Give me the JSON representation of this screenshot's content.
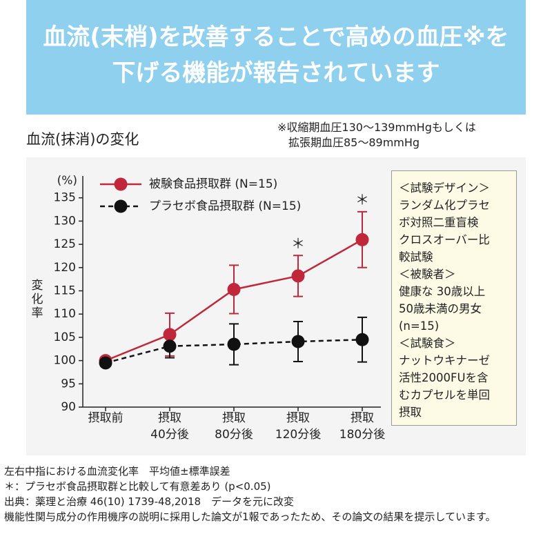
{
  "header": {
    "line1": "血流(末梢)を改善することで高めの血圧※を",
    "line2": "下げる機能が報告されています"
  },
  "footnote_top": "※収縮期血圧130～139mmHgもしくは\n　拡張期血圧85～89mmHg",
  "chart_data": {
    "type": "line",
    "title": "血流(抹消)の変化",
    "y_label": "変化率",
    "y_unit": "(%)",
    "categories": [
      "摂取前",
      "摂取\n40分後",
      "摂取\n80分後",
      "摂取\n120分後",
      "摂取\n180分後"
    ],
    "series": [
      {
        "name": "被験食品摂取群 (N=15)",
        "color": "#c0273a",
        "dash": false,
        "values": [
          100,
          105.6,
          115.3,
          118.2,
          126.0
        ],
        "errors": [
          0,
          4.6,
          5.2,
          4.4,
          6.0
        ]
      },
      {
        "name": "プラセボ食品摂取群 (N=15)",
        "color": "#111111",
        "dash": true,
        "values": [
          99.5,
          103.1,
          103.5,
          104.1,
          104.5
        ],
        "errors": [
          0,
          2.5,
          4.4,
          4.3,
          4.8
        ]
      }
    ],
    "significance": [
      {
        "index": 3,
        "text": "＊"
      },
      {
        "index": 4,
        "text": "＊"
      }
    ],
    "ylim": [
      90,
      135
    ],
    "yticks": [
      90,
      95,
      100,
      105,
      110,
      115,
      120,
      125,
      130,
      135
    ]
  },
  "design_box": [
    "＜試験デザイン＞",
    "ランダム化プラセ",
    "ボ対照二重盲検",
    "クロスオーバー比",
    "較試験",
    "＜被験者＞",
    "健康な 30歳以上",
    "50歳未満の男女",
    "(n=15)",
    "＜試験食＞",
    "ナットウキナーゼ",
    "活性2000FUを含",
    "むカプセルを単回",
    "摂取"
  ],
  "notes": [
    "左右中指における血流変化率　平均値±標準誤差",
    "＊：プラセボ食品摂取群と比較して有意差あり (p<0.05)",
    "出典：薬理と治療 46(10) 1739-48,2018　データを元に改変",
    "機能性関与成分の作用機序の説明に採用した論文が1報であったため、その論文の結果を提示しています。"
  ]
}
